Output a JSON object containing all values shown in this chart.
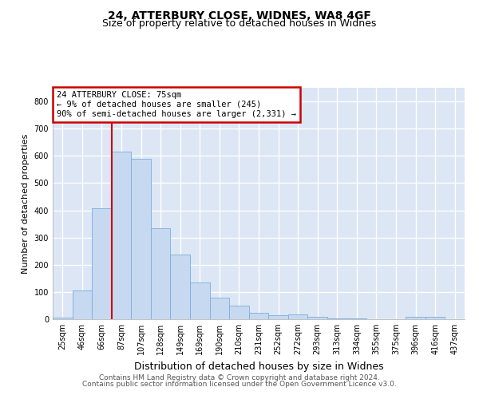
{
  "title1": "24, ATTERBURY CLOSE, WIDNES, WA8 4GF",
  "title2": "Size of property relative to detached houses in Widnes",
  "xlabel": "Distribution of detached houses by size in Widnes",
  "ylabel": "Number of detached properties",
  "categories": [
    "25sqm",
    "46sqm",
    "66sqm",
    "87sqm",
    "107sqm",
    "128sqm",
    "149sqm",
    "169sqm",
    "190sqm",
    "210sqm",
    "231sqm",
    "252sqm",
    "272sqm",
    "293sqm",
    "313sqm",
    "334sqm",
    "355sqm",
    "375sqm",
    "396sqm",
    "416sqm",
    "437sqm"
  ],
  "values": [
    7,
    106,
    407,
    615,
    590,
    333,
    237,
    136,
    79,
    51,
    23,
    15,
    17,
    8,
    4,
    2,
    0,
    0,
    9,
    9,
    0
  ],
  "bar_color": "#c6d9f1",
  "bar_edge_color": "#7aadde",
  "red_line_x": 2.5,
  "annotation_text": "24 ATTERBURY CLOSE: 75sqm\n← 9% of detached houses are smaller (245)\n90% of semi-detached houses are larger (2,331) →",
  "annotation_box_color": "#ffffff",
  "annotation_box_edge_color": "#cc0000",
  "ylim": [
    0,
    850
  ],
  "yticks": [
    0,
    100,
    200,
    300,
    400,
    500,
    600,
    700,
    800
  ],
  "footer1": "Contains HM Land Registry data © Crown copyright and database right 2024.",
  "footer2": "Contains public sector information licensed under the Open Government Licence v3.0.",
  "bg_color": "#dce6f5",
  "grid_color": "#ffffff",
  "title1_fontsize": 10,
  "title2_fontsize": 9,
  "xlabel_fontsize": 9,
  "ylabel_fontsize": 8,
  "tick_fontsize": 7,
  "footer_fontsize": 6.5
}
